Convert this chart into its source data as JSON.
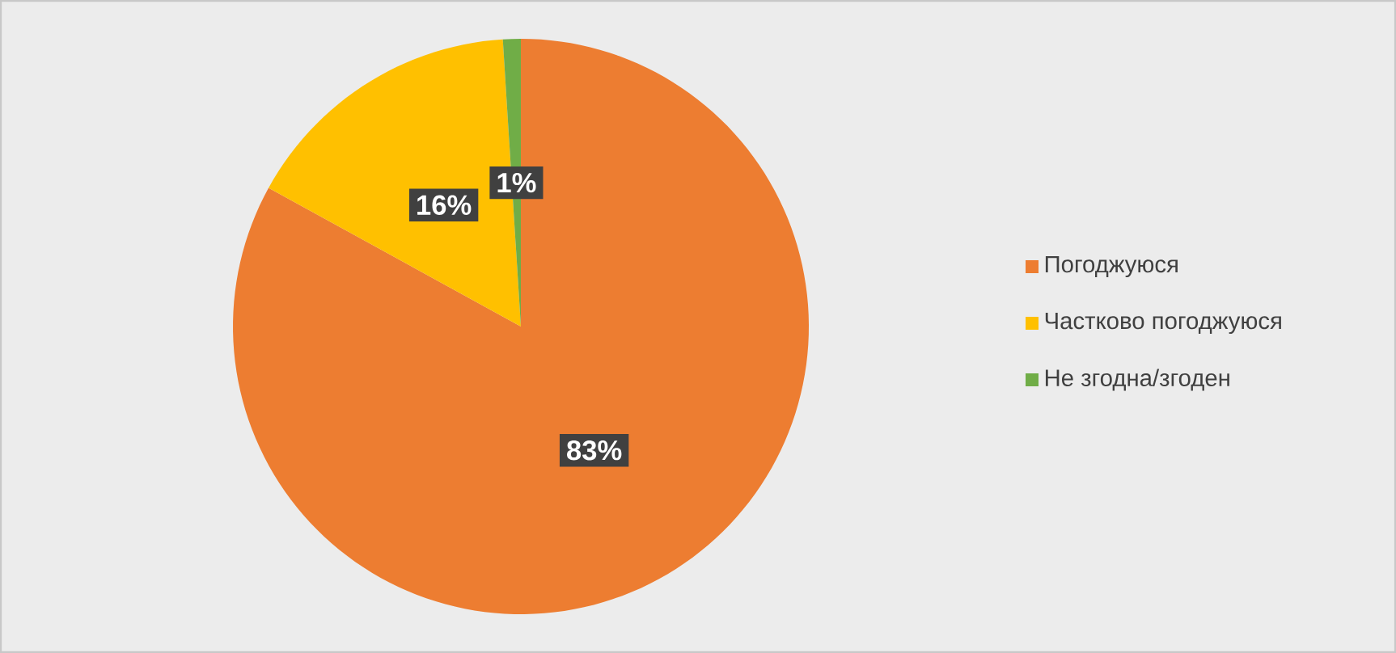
{
  "chart_data": {
    "type": "pie",
    "categories": [
      "Погоджуюся",
      "Частково погоджуюся",
      "Не згодна/згоден"
    ],
    "values": [
      83,
      16,
      1
    ],
    "colors": [
      "#ed7d31",
      "#ffc000",
      "#70ad47"
    ],
    "value_labels": [
      "83%",
      "16%",
      "1%"
    ],
    "legend": "right"
  }
}
